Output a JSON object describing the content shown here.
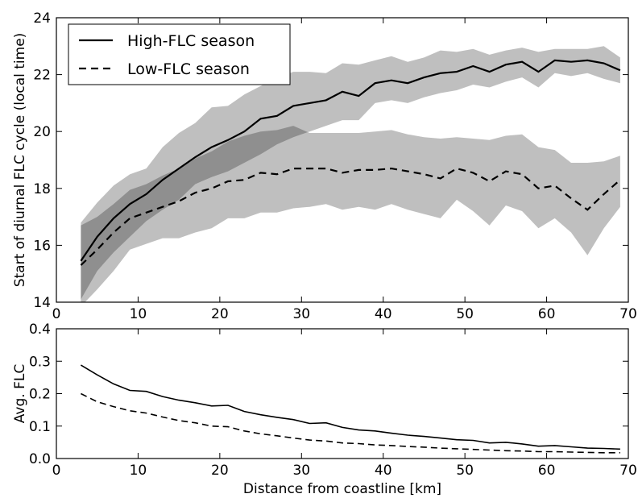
{
  "chart_data": [
    {
      "type": "line",
      "title": "",
      "xlabel": "",
      "ylabel": "Start of diurnal FLC cycle (local time)",
      "xlim": [
        0,
        70
      ],
      "ylim": [
        14,
        24
      ],
      "xticks": [
        0,
        10,
        20,
        30,
        40,
        50,
        60,
        70
      ],
      "yticks": [
        14,
        16,
        18,
        20,
        22,
        24
      ],
      "legend": "top-left",
      "grid": false,
      "band_color": "#bfbfbf",
      "band_overlap_color": "#808080",
      "x": [
        3,
        5,
        7,
        9,
        11,
        13,
        15,
        17,
        19,
        21,
        23,
        25,
        27,
        29,
        31,
        33,
        35,
        37,
        39,
        41,
        43,
        45,
        47,
        49,
        51,
        53,
        55,
        57,
        59,
        61,
        63,
        65,
        67,
        69
      ],
      "series": [
        {
          "name": "High-FLC season",
          "style": "solid",
          "values": [
            15.45,
            16.3,
            16.95,
            17.45,
            17.8,
            18.3,
            18.7,
            19.1,
            19.45,
            19.7,
            20.0,
            20.45,
            20.55,
            20.9,
            21.0,
            21.1,
            21.4,
            21.25,
            21.7,
            21.8,
            21.7,
            21.9,
            22.05,
            22.1,
            22.3,
            22.1,
            22.35,
            22.45,
            22.1,
            22.5,
            22.45,
            22.5,
            22.4,
            22.15
          ],
          "band_upper": [
            16.8,
            17.5,
            18.1,
            18.5,
            18.7,
            19.45,
            19.95,
            20.3,
            20.85,
            20.9,
            21.3,
            21.6,
            21.9,
            22.1,
            22.1,
            22.05,
            22.4,
            22.35,
            22.5,
            22.65,
            22.45,
            22.6,
            22.85,
            22.8,
            22.9,
            22.7,
            22.85,
            22.95,
            22.8,
            22.9,
            22.9,
            22.9,
            23.0,
            22.6
          ],
          "band_lower": [
            14.1,
            15.1,
            15.75,
            16.3,
            16.85,
            17.25,
            17.6,
            18.15,
            18.4,
            18.6,
            18.9,
            19.2,
            19.55,
            19.8,
            20.0,
            20.2,
            20.4,
            20.4,
            21.0,
            21.1,
            21.0,
            21.2,
            21.35,
            21.45,
            21.65,
            21.55,
            21.75,
            21.9,
            21.55,
            22.05,
            21.95,
            22.05,
            21.85,
            21.7
          ]
        },
        {
          "name": "Low-FLC season",
          "style": "dashed",
          "values": [
            15.3,
            15.85,
            16.45,
            16.95,
            17.15,
            17.35,
            17.55,
            17.85,
            18.0,
            18.25,
            18.3,
            18.55,
            18.5,
            18.7,
            18.7,
            18.7,
            18.55,
            18.65,
            18.65,
            18.7,
            18.6,
            18.5,
            18.35,
            18.7,
            18.55,
            18.25,
            18.6,
            18.5,
            18.0,
            18.1,
            17.65,
            17.25,
            17.8,
            18.3
          ],
          "band_upper": [
            16.7,
            17.0,
            17.45,
            17.95,
            18.15,
            18.45,
            18.7,
            19.05,
            19.3,
            19.65,
            19.85,
            20.0,
            20.05,
            20.2,
            19.95,
            19.95,
            19.95,
            19.95,
            20.0,
            20.05,
            19.9,
            19.8,
            19.75,
            19.8,
            19.75,
            19.7,
            19.85,
            19.9,
            19.45,
            19.35,
            18.9,
            18.9,
            18.95,
            19.15
          ],
          "band_lower": [
            13.85,
            14.45,
            15.1,
            15.85,
            16.05,
            16.25,
            16.25,
            16.45,
            16.6,
            16.95,
            16.95,
            17.15,
            17.15,
            17.3,
            17.35,
            17.45,
            17.25,
            17.35,
            17.25,
            17.45,
            17.25,
            17.1,
            16.95,
            17.6,
            17.2,
            16.7,
            17.4,
            17.2,
            16.6,
            16.95,
            16.45,
            15.65,
            16.6,
            17.35
          ]
        }
      ]
    },
    {
      "type": "line",
      "title": "",
      "xlabel": "Distance from coastline [km]",
      "ylabel": "Avg. FLC",
      "xlim": [
        0,
        70
      ],
      "ylim": [
        0.0,
        0.4
      ],
      "xticks": [
        0,
        10,
        20,
        30,
        40,
        50,
        60,
        70
      ],
      "yticks": [
        "0.0",
        "0.1",
        "0.2",
        "0.3",
        "0.4"
      ],
      "grid": false,
      "x": [
        3,
        5,
        7,
        9,
        11,
        13,
        15,
        17,
        19,
        21,
        23,
        25,
        27,
        29,
        31,
        33,
        35,
        37,
        39,
        41,
        43,
        45,
        47,
        49,
        51,
        53,
        55,
        57,
        59,
        61,
        63,
        65,
        67,
        69
      ],
      "series": [
        {
          "style": "solid",
          "values": [
            0.288,
            0.258,
            0.23,
            0.21,
            0.207,
            0.191,
            0.18,
            0.172,
            0.162,
            0.164,
            0.145,
            0.135,
            0.127,
            0.12,
            0.108,
            0.11,
            0.096,
            0.088,
            0.085,
            0.078,
            0.072,
            0.068,
            0.063,
            0.058,
            0.056,
            0.048,
            0.05,
            0.045,
            0.038,
            0.04,
            0.036,
            0.032,
            0.031,
            0.029
          ]
        },
        {
          "style": "dashed",
          "values": [
            0.2,
            0.175,
            0.16,
            0.147,
            0.14,
            0.128,
            0.117,
            0.11,
            0.1,
            0.098,
            0.085,
            0.076,
            0.07,
            0.063,
            0.057,
            0.054,
            0.048,
            0.046,
            0.042,
            0.04,
            0.037,
            0.035,
            0.032,
            0.03,
            0.028,
            0.026,
            0.024,
            0.023,
            0.021,
            0.021,
            0.02,
            0.019,
            0.018,
            0.018
          ]
        }
      ]
    }
  ]
}
